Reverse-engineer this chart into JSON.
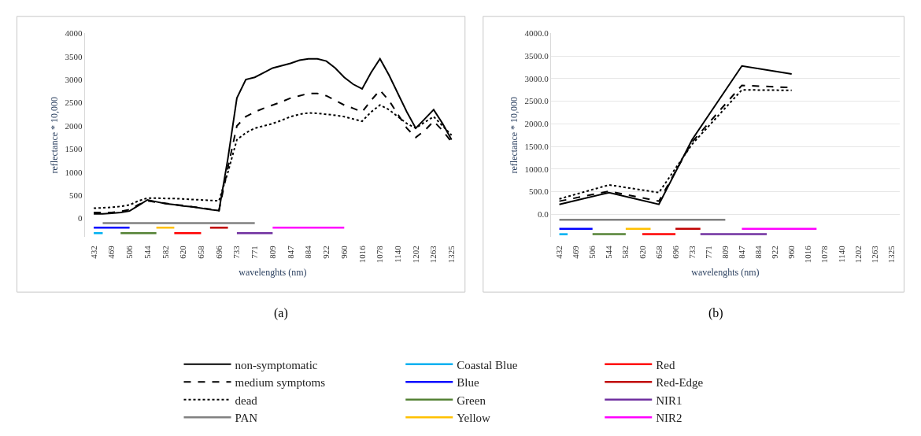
{
  "chart_data": [
    {
      "type": "line",
      "title": "(a)",
      "xlabel": "wavelenghts (nm)",
      "ylabel": "reflectance * 10,000",
      "grid": false,
      "legend": "bottom",
      "categories": [
        "432",
        null,
        "469",
        null,
        "506",
        null,
        "544",
        null,
        "582",
        null,
        "620",
        null,
        "658",
        null,
        "696",
        null,
        "733",
        null,
        "771",
        null,
        "809",
        null,
        "847",
        null,
        "884",
        null,
        "922",
        null,
        "960",
        null,
        "1016",
        null,
        "1078",
        null,
        "1140",
        null,
        "1202",
        null,
        "1263",
        null,
        "1325"
      ],
      "yticks": [
        0,
        500,
        1000,
        1500,
        2000,
        2500,
        3000,
        3500,
        4000
      ],
      "ylim": [
        -400,
        4000
      ],
      "series": [
        {
          "name": "non-symptomatic",
          "color": "#000000",
          "line_style": "solid",
          "values": [
            100,
            100,
            110,
            130,
            160,
            280,
            400,
            360,
            320,
            300,
            270,
            250,
            220,
            190,
            170,
            1300,
            2600,
            3000,
            3050,
            3150,
            3250,
            3300,
            3350,
            3420,
            3450,
            3450,
            3400,
            3250,
            3050,
            2900,
            2800,
            3150,
            3450,
            3100,
            2700,
            2300,
            1950,
            2150,
            2350,
            2050,
            1700
          ]
        },
        {
          "name": "medium symptoms",
          "color": "#000000",
          "line_style": "dashed",
          "values": [
            130,
            130,
            130,
            150,
            190,
            300,
            380,
            350,
            330,
            300,
            280,
            250,
            230,
            200,
            170,
            1100,
            2000,
            2200,
            2300,
            2380,
            2450,
            2520,
            2600,
            2650,
            2700,
            2700,
            2650,
            2550,
            2450,
            2380,
            2300,
            2550,
            2770,
            2550,
            2250,
            1950,
            1750,
            1900,
            2100,
            1900,
            1650
          ]
        },
        {
          "name": "dead",
          "color": "#000000",
          "line_style": "dotted",
          "values": [
            220,
            230,
            240,
            260,
            290,
            380,
            440,
            440,
            430,
            430,
            420,
            410,
            400,
            390,
            380,
            1000,
            1700,
            1850,
            1950,
            2000,
            2050,
            2120,
            2200,
            2250,
            2280,
            2270,
            2250,
            2230,
            2200,
            2150,
            2100,
            2300,
            2450,
            2350,
            2200,
            2050,
            1950,
            2080,
            2200,
            2000,
            1800
          ]
        },
        {
          "name": "PAN",
          "color": "#808080",
          "line_style": "solid",
          "values": [
            null,
            -100,
            -100,
            -100,
            -100,
            -100,
            -100,
            -100,
            -100,
            -100,
            -100,
            -100,
            -100,
            -100,
            -100,
            -100,
            -100,
            -100,
            -100,
            null,
            null,
            null,
            null,
            null,
            null,
            null,
            null,
            null,
            null,
            null,
            null,
            null,
            null,
            null,
            null,
            null,
            null,
            null,
            null,
            null,
            null
          ]
        },
        {
          "name": "Coastal Blue",
          "color": "#00b0f0",
          "line_style": "solid",
          "values": [
            -320,
            -320,
            null,
            null,
            null,
            null,
            null,
            null,
            null,
            null,
            null,
            null,
            null,
            null,
            null,
            null,
            null,
            null,
            null,
            null,
            null,
            null,
            null,
            null,
            null,
            null,
            null,
            null,
            null,
            null,
            null,
            null,
            null,
            null,
            null,
            null,
            null,
            null,
            null,
            null,
            null
          ]
        },
        {
          "name": "Blue",
          "color": "#0000ff",
          "line_style": "solid",
          "values": [
            -200,
            -200,
            -200,
            -200,
            -200,
            null,
            null,
            null,
            null,
            null,
            null,
            null,
            null,
            null,
            null,
            null,
            null,
            null,
            null,
            null,
            null,
            null,
            null,
            null,
            null,
            null,
            null,
            null,
            null,
            null,
            null,
            null,
            null,
            null,
            null,
            null,
            null,
            null,
            null,
            null,
            null
          ]
        },
        {
          "name": "Green",
          "color": "#548235",
          "line_style": "solid",
          "values": [
            null,
            null,
            null,
            -320,
            -320,
            -320,
            -320,
            -320,
            null,
            null,
            null,
            null,
            null,
            null,
            null,
            null,
            null,
            null,
            null,
            null,
            null,
            null,
            null,
            null,
            null,
            null,
            null,
            null,
            null,
            null,
            null,
            null,
            null,
            null,
            null,
            null,
            null,
            null,
            null,
            null,
            null
          ]
        },
        {
          "name": "Yellow",
          "color": "#ffc000",
          "line_style": "solid",
          "values": [
            null,
            null,
            null,
            null,
            null,
            null,
            null,
            -200,
            -200,
            -200,
            null,
            null,
            null,
            null,
            null,
            null,
            null,
            null,
            null,
            null,
            null,
            null,
            null,
            null,
            null,
            null,
            null,
            null,
            null,
            null,
            null,
            null,
            null,
            null,
            null,
            null,
            null,
            null,
            null,
            null,
            null
          ]
        },
        {
          "name": "Red",
          "color": "#ff0000",
          "line_style": "solid",
          "values": [
            null,
            null,
            null,
            null,
            null,
            null,
            null,
            null,
            null,
            -320,
            -320,
            -320,
            -320,
            null,
            null,
            null,
            null,
            null,
            null,
            null,
            null,
            null,
            null,
            null,
            null,
            null,
            null,
            null,
            null,
            null,
            null,
            null,
            null,
            null,
            null,
            null,
            null,
            null,
            null,
            null,
            null
          ]
        },
        {
          "name": "Red-Edge",
          "color": "#c00000",
          "line_style": "solid",
          "values": [
            null,
            null,
            null,
            null,
            null,
            null,
            null,
            null,
            null,
            null,
            null,
            null,
            null,
            -200,
            -200,
            -200,
            null,
            null,
            null,
            null,
            null,
            null,
            null,
            null,
            null,
            null,
            null,
            null,
            null,
            null,
            null,
            null,
            null,
            null,
            null,
            null,
            null,
            null,
            null,
            null,
            null
          ]
        },
        {
          "name": "NIR1",
          "color": "#7030a0",
          "line_style": "solid",
          "values": [
            null,
            null,
            null,
            null,
            null,
            null,
            null,
            null,
            null,
            null,
            null,
            null,
            null,
            null,
            null,
            null,
            -320,
            -320,
            -320,
            -320,
            -320,
            null,
            null,
            null,
            null,
            null,
            null,
            null,
            null,
            null,
            null,
            null,
            null,
            null,
            null,
            null,
            null,
            null,
            null,
            null,
            null
          ]
        },
        {
          "name": "NIR2",
          "color": "#ff00ff",
          "line_style": "solid",
          "values": [
            null,
            null,
            null,
            null,
            null,
            null,
            null,
            null,
            null,
            null,
            null,
            null,
            null,
            null,
            null,
            null,
            null,
            null,
            null,
            null,
            -200,
            -200,
            -200,
            -200,
            -200,
            -200,
            -200,
            -200,
            -200,
            null,
            null,
            null,
            null,
            null,
            null,
            null,
            null,
            null,
            null,
            null,
            null
          ]
        }
      ]
    },
    {
      "type": "line",
      "title": "(b)",
      "xlabel": "wavelenghts (nm)",
      "ylabel": "reflectance * 10,000",
      "grid": "y",
      "categories": [
        "432",
        null,
        "469",
        null,
        "506",
        null,
        "544",
        null,
        "582",
        null,
        "620",
        null,
        "658",
        null,
        "696",
        null,
        "733",
        null,
        "771",
        null,
        "809",
        null,
        "847",
        null,
        "884",
        null,
        "922",
        null,
        "960",
        null,
        "1016",
        null,
        "1078",
        null,
        "1140",
        null,
        "1202",
        null,
        "1263",
        null,
        "1325"
      ],
      "yticks": [
        {
          "value": 0,
          "label": "0.0"
        },
        {
          "value": 500,
          "label": "500.0"
        },
        {
          "value": 1000,
          "label": "1000.0"
        },
        {
          "value": 1500,
          "label": "1500.0"
        },
        {
          "value": 2000,
          "label": "2000.0"
        },
        {
          "value": 2500,
          "label": "2500.0"
        },
        {
          "value": 3000,
          "label": "3000.0"
        },
        {
          "value": 3500,
          "label": "3500.0"
        },
        {
          "value": 4000,
          "label": "4000.0"
        }
      ],
      "ylim": [
        -500,
        4000
      ],
      "series": [
        {
          "color": "#000000",
          "line_style": "solid",
          "x": [
            "432",
            "544",
            "658",
            "733",
            "847",
            "960"
          ],
          "values": [
            220,
            480,
            220,
            1650,
            3280,
            3100
          ]
        },
        {
          "color": "#000000",
          "line_style": "dashed",
          "x": [
            "432",
            "544",
            "658",
            "733",
            "847",
            "960"
          ],
          "values": [
            290,
            510,
            290,
            1600,
            2850,
            2800
          ]
        },
        {
          "color": "#000000",
          "line_style": "dotted",
          "x": [
            "432",
            "544",
            "658",
            "733",
            "847",
            "960"
          ],
          "values": [
            340,
            650,
            480,
            1550,
            2750,
            2740
          ]
        },
        {
          "color": "#808080",
          "line_style": "solid",
          "values": [
            -120,
            -120,
            -120,
            -120,
            -120,
            -120,
            -120,
            -120,
            -120,
            -120,
            -120,
            -120,
            -120,
            -120,
            -120,
            -120,
            -120,
            -120,
            -120,
            -120,
            -120,
            null,
            null,
            null,
            null,
            null,
            null,
            null,
            null,
            null,
            null,
            null,
            null,
            null,
            null,
            null,
            null,
            null,
            null,
            null,
            null
          ]
        },
        {
          "color": "#00b0f0",
          "line_style": "solid",
          "values": [
            -440,
            -440,
            null,
            null,
            null,
            null,
            null,
            null,
            null,
            null,
            null,
            null,
            null,
            null,
            null,
            null,
            null,
            null,
            null,
            null,
            null,
            null,
            null,
            null,
            null,
            null,
            null,
            null,
            null,
            null,
            null,
            null,
            null,
            null,
            null,
            null,
            null,
            null,
            null,
            null,
            null
          ]
        },
        {
          "color": "#0000ff",
          "line_style": "solid",
          "values": [
            -320,
            -320,
            -320,
            -320,
            -320,
            null,
            null,
            null,
            null,
            null,
            null,
            null,
            null,
            null,
            null,
            null,
            null,
            null,
            null,
            null,
            null,
            null,
            null,
            null,
            null,
            null,
            null,
            null,
            null,
            null,
            null,
            null,
            null,
            null,
            null,
            null,
            null,
            null,
            null,
            null,
            null
          ]
        },
        {
          "color": "#548235",
          "line_style": "solid",
          "values": [
            null,
            null,
            null,
            null,
            -440,
            -440,
            -440,
            -440,
            -440,
            null,
            null,
            null,
            null,
            null,
            null,
            null,
            null,
            null,
            null,
            null,
            null,
            null,
            null,
            null,
            null,
            null,
            null,
            null,
            null,
            null,
            null,
            null,
            null,
            null,
            null,
            null,
            null,
            null,
            null,
            null,
            null
          ]
        },
        {
          "color": "#ffc000",
          "line_style": "solid",
          "values": [
            null,
            null,
            null,
            null,
            null,
            null,
            null,
            null,
            -320,
            -320,
            -320,
            -320,
            null,
            null,
            null,
            null,
            null,
            null,
            null,
            null,
            null,
            null,
            null,
            null,
            null,
            null,
            null,
            null,
            null,
            null,
            null,
            null,
            null,
            null,
            null,
            null,
            null,
            null,
            null,
            null,
            null
          ]
        },
        {
          "color": "#ff0000",
          "line_style": "solid",
          "values": [
            null,
            null,
            null,
            null,
            null,
            null,
            null,
            null,
            null,
            null,
            -440,
            -440,
            -440,
            -440,
            -440,
            null,
            null,
            null,
            null,
            null,
            null,
            null,
            null,
            null,
            null,
            null,
            null,
            null,
            null,
            null,
            null,
            null,
            null,
            null,
            null,
            null,
            null,
            null,
            null,
            null,
            null
          ]
        },
        {
          "color": "#c00000",
          "line_style": "solid",
          "values": [
            null,
            null,
            null,
            null,
            null,
            null,
            null,
            null,
            null,
            null,
            null,
            null,
            null,
            null,
            -320,
            -320,
            -320,
            -320,
            null,
            null,
            null,
            null,
            null,
            null,
            null,
            null,
            null,
            null,
            null,
            null,
            null,
            null,
            null,
            null,
            null,
            null,
            null,
            null,
            null,
            null,
            null
          ]
        },
        {
          "color": "#7030a0",
          "line_style": "solid",
          "values": [
            null,
            null,
            null,
            null,
            null,
            null,
            null,
            null,
            null,
            null,
            null,
            null,
            null,
            null,
            null,
            null,
            null,
            -440,
            -440,
            -440,
            -440,
            -440,
            -440,
            -440,
            -440,
            -440,
            null,
            null,
            null,
            null,
            null,
            null,
            null,
            null,
            null,
            null,
            null,
            null,
            null,
            null,
            null
          ]
        },
        {
          "color": "#ff00ff",
          "line_style": "solid",
          "values": [
            null,
            null,
            null,
            null,
            null,
            null,
            null,
            null,
            null,
            null,
            null,
            null,
            null,
            null,
            null,
            null,
            null,
            null,
            null,
            null,
            null,
            null,
            -320,
            -320,
            -320,
            -320,
            -320,
            -320,
            -320,
            -320,
            -320,
            -320,
            null,
            null,
            null,
            null,
            null,
            null,
            null,
            null,
            null
          ]
        }
      ]
    }
  ]
}
